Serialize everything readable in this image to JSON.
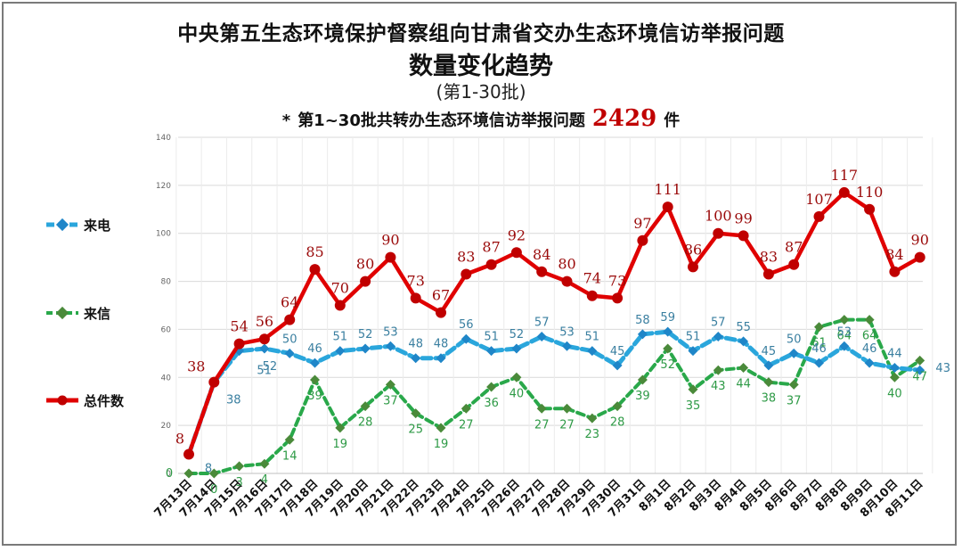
{
  "title": {
    "line1": "中央第五生态环境保护督察组向甘肃省交办生态环境信访举报问题",
    "line2": "数量变化趋势",
    "line3": "(第1-30批)"
  },
  "summary": {
    "bullet": "*",
    "prefix": "第1~30批共转办生态环境信访举报问题",
    "total": "2429",
    "suffix": "件"
  },
  "legend": {
    "phone": "来电",
    "letter": "来信",
    "total": "总件数"
  },
  "colors": {
    "phone": "#2aa6dc",
    "phone_marker": "#1f86c8",
    "letter": "#29a84a",
    "letter_marker": "#4a8a3a",
    "total": "#e00000",
    "total_marker": "#c00000",
    "phone_label": "#3a7fa0",
    "letter_label": "#2e9a46",
    "total_label": "#9a0a0a"
  },
  "chart_data": {
    "type": "line",
    "categories": [
      "7月13日",
      "7月14日",
      "7月15日",
      "7月16日",
      "7月17日",
      "7月18日",
      "7月19日",
      "7月20日",
      "7月21日",
      "7月22日",
      "7月23日",
      "7月24日",
      "7月25日",
      "7月26日",
      "7月27日",
      "7月28日",
      "7月29日",
      "7月30日",
      "7月31日",
      "8月1日",
      "8月2日",
      "8月3日",
      "8月4日",
      "8月5日",
      "8月6日",
      "8月7日",
      "8月8日",
      "8月9日",
      "8月10日",
      "8月11日"
    ],
    "series": [
      {
        "name": "来电",
        "key": "phone",
        "values": [
          8,
          38,
          51,
          52,
          50,
          46,
          51,
          52,
          53,
          48,
          48,
          56,
          51,
          52,
          57,
          53,
          51,
          45,
          58,
          59,
          51,
          57,
          55,
          45,
          50,
          46,
          53,
          46,
          44,
          43
        ]
      },
      {
        "name": "来信",
        "key": "letter",
        "values": [
          0,
          0,
          3,
          4,
          14,
          39,
          19,
          28,
          37,
          25,
          19,
          27,
          36,
          40,
          27,
          27,
          23,
          28,
          39,
          52,
          35,
          43,
          44,
          38,
          37,
          61,
          64,
          64,
          40,
          47
        ]
      },
      {
        "name": "总件数",
        "key": "total",
        "values": [
          8,
          38,
          54,
          56,
          64,
          85,
          70,
          80,
          90,
          73,
          67,
          83,
          87,
          92,
          84,
          80,
          74,
          73,
          97,
          111,
          86,
          100,
          99,
          83,
          87,
          107,
          117,
          110,
          84,
          90
        ]
      }
    ],
    "ylim": [
      0,
      140
    ],
    "yticks": [
      "0",
      "20",
      "40",
      "60",
      "80",
      "100",
      "120",
      "140"
    ],
    "grid": true,
    "legend_position": "left"
  }
}
